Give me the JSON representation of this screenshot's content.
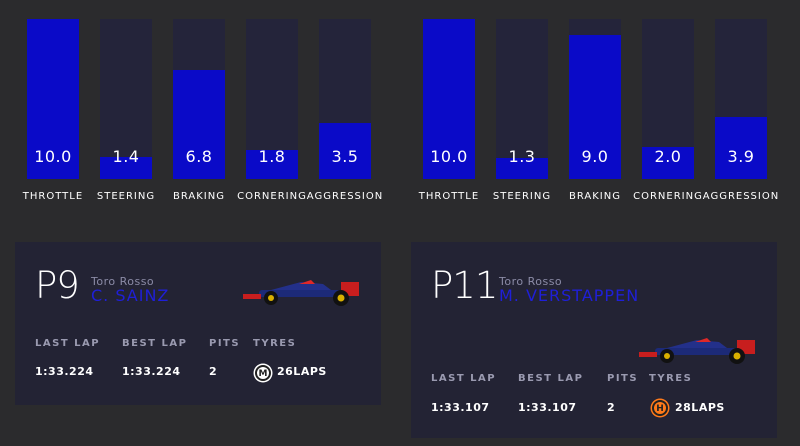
{
  "left_stats": {
    "bars": [
      {
        "label": "THROTTLE",
        "value": "10.0",
        "level": 1.0
      },
      {
        "label": "STEERING",
        "value": "1.4",
        "level": 0.14
      },
      {
        "label": "BRAKING",
        "value": "6.8",
        "level": 0.68
      },
      {
        "label": "CORNERING",
        "value": "1.8",
        "level": 0.18
      },
      {
        "label": "AGGRESSION",
        "value": "3.5",
        "level": 0.35
      }
    ]
  },
  "right_stats": {
    "bars": [
      {
        "label": "THROTTLE",
        "value": "10.0",
        "level": 1.0
      },
      {
        "label": "STEERING",
        "value": "1.3",
        "level": 0.13
      },
      {
        "label": "BRAKING",
        "value": "9.0",
        "level": 0.9
      },
      {
        "label": "CORNERING",
        "value": "2.0",
        "level": 0.2
      },
      {
        "label": "AGGRESSION",
        "value": "3.9",
        "level": 0.39
      }
    ]
  },
  "left_card": {
    "position": "P9",
    "team": "Toro Rosso",
    "driver": "C. SAINZ",
    "headers": {
      "last_lap": "LAST LAP",
      "best_lap": "BEST LAP",
      "pits": "PITS",
      "tyres": "TYRES"
    },
    "last_lap": "1:33.224",
    "best_lap": "1:33.224",
    "pits": "2",
    "tyre_compound": "M",
    "laps": "26LAPS",
    "tyre_color": "#ffffff",
    "car_icon": "f1-car-icon"
  },
  "right_card": {
    "position": "P11",
    "team": "Toro Rosso",
    "driver": "M. VERSTAPPEN",
    "headers": {
      "last_lap": "LAST LAP",
      "best_lap": "BEST LAP",
      "pits": "PITS",
      "tyres": "TYRES"
    },
    "last_lap": "1:33.107",
    "best_lap": "1:33.107",
    "pits": "2",
    "tyre_compound": "H",
    "laps": "28LAPS",
    "tyre_color": "#ff7a1a",
    "car_icon": "f1-car-icon"
  },
  "colors": {
    "background": "#2b2b2d",
    "bar_track": "#24243a",
    "bar_fill": "#0a0ac8",
    "card_bg": "#232334",
    "driver_name": "#1f1fd8"
  }
}
